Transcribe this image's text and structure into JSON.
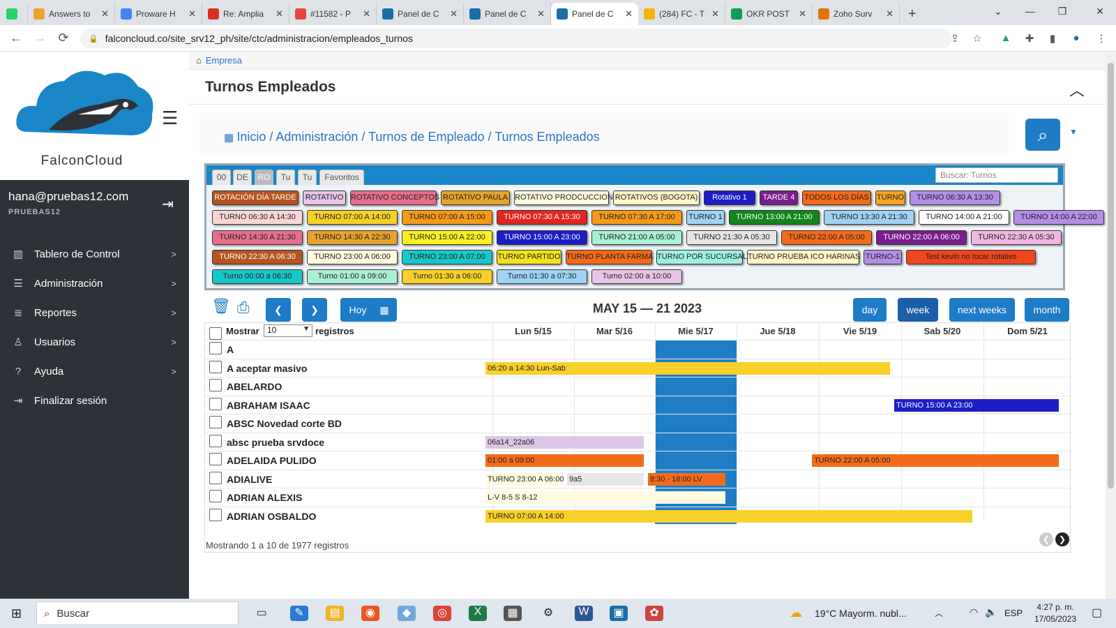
{
  "browser": {
    "tabs": [
      {
        "title": "",
        "pinned": true,
        "color": "#25d366"
      },
      {
        "title": "Answers to",
        "color": "#f0a22e"
      },
      {
        "title": "Proware H",
        "color": "#4285f4"
      },
      {
        "title": "Re: Amplia",
        "color": "#d93025"
      },
      {
        "title": "#11582 - P",
        "color": "#e8453c"
      },
      {
        "title": "Panel de C",
        "color": "#1a6ea8"
      },
      {
        "title": "Panel de C",
        "color": "#1a6ea8"
      },
      {
        "title": "Panel de C",
        "color": "#1a6ea8",
        "active": true
      },
      {
        "title": "(284) FC - T",
        "color": "#f4b400"
      },
      {
        "title": "OKR POST",
        "color": "#0f9d58"
      },
      {
        "title": "Zoho Surv",
        "color": "#e37400"
      }
    ],
    "url": "falconcloud.co/site_srv12_ph/site/ctc/administracion/empleados_turnos"
  },
  "sidebar": {
    "brand": "FalconCloud",
    "user_email": "hana@pruebas12.com",
    "company": "PRUEBAS12",
    "items": [
      {
        "label": "Tablero de Control",
        "icon": "chart-icon",
        "arrow": ">"
      },
      {
        "label": "Administración",
        "icon": "list-icon",
        "arrow": ">"
      },
      {
        "label": "Reportes",
        "icon": "report-list-icon",
        "arrow": ">"
      },
      {
        "label": "Usuarios",
        "icon": "user-icon",
        "arrow": ">"
      },
      {
        "label": "Ayuda",
        "icon": "question-icon",
        "arrow": ">"
      },
      {
        "label": "Finalizar sesión",
        "icon": "logout-icon",
        "arrow": ""
      }
    ]
  },
  "header": {
    "crumb_top": "Empresa",
    "page_title": "Turnos Empleados",
    "breadcrumb": "Inicio / Administración / Turnos de Empleado / Turnos Empleados"
  },
  "legend": {
    "tabs": [
      "00",
      "DE",
      "RO",
      "Tu",
      "Tu",
      "Favoritos"
    ],
    "active_tab": 2,
    "search_placeholder": "Buscar: Turnos",
    "chips": [
      [
        [
          "ROTACIÓN DÍA TARDE",
          "#b5561f",
          "#fff"
        ],
        [
          "ROTATIVO",
          "#e8c4e8",
          "#222"
        ],
        [
          "ROTATIVO CONCEPTOS",
          "#e76f8c",
          "#222"
        ],
        [
          "ROTATIVO PAULA",
          "#e6a32e",
          "#222"
        ],
        [
          "ROTATIVO PRODCUCCION",
          "#fffbe0",
          "#222"
        ],
        [
          "ROTATIVOS (BOGOTA)",
          "#fff5c8",
          "#222"
        ],
        [
          "Rotativo 1",
          "#1d1dc8",
          "#fff"
        ],
        [
          "TARDE 4",
          "#7b1d8c",
          "#fff"
        ],
        [
          "TODOS LOS DÍAS",
          "#f36b1a",
          "#222"
        ],
        [
          "TURNO",
          "#f5a623",
          "#222"
        ],
        [
          "TURNO 06:30 A 13:30",
          "#b48ee6",
          "#222"
        ]
      ],
      [
        [
          "TURNO 06:30 A 14:30",
          "#f8d6d6",
          "#222"
        ],
        [
          "TURNO 07:00 A 14:00",
          "#f8d02a",
          "#222"
        ],
        [
          "TURNO 07:00 A 15:00",
          "#f59a1a",
          "#222"
        ],
        [
          "TURNO 07:30 A 15:30",
          "#e0261e",
          "#fff"
        ],
        [
          "TURNO 07:30 A 17:00",
          "#f59a1a",
          "#222"
        ],
        [
          "TURNO 1",
          "#9fd3f5",
          "#222"
        ],
        [
          "TURNO 13:00 A 21:00",
          "#11861a",
          "#fff"
        ],
        [
          "TURNO 13:30 A 21:30",
          "#9fd3f5",
          "#222"
        ],
        [
          "TURNO 14:00 A 21:00",
          "#fff",
          "#222"
        ],
        [
          "TURNO 14:00 A 22:00",
          "#b48ee6",
          "#222"
        ]
      ],
      [
        [
          "TURNO 14:30 A 21:30",
          "#e76f8c",
          "#222"
        ],
        [
          "TURNO 14:30 A 22:30",
          "#e6a32e",
          "#222"
        ],
        [
          "TURNO 15:00 A 22:00",
          "#faf021",
          "#222"
        ],
        [
          "TURNO 15:00 A 23:00",
          "#1d1dc8",
          "#fff"
        ],
        [
          "TURNO 21:00 A 05:00",
          "#a8f0d4",
          "#222"
        ],
        [
          "TURNO 21:30 A 05:30",
          "#e6e6e6",
          "#222"
        ],
        [
          "TURNO 22:00 A 05:00",
          "#f36b1a",
          "#222"
        ],
        [
          "TURNO 22:00 A 06:00",
          "#7b1d8c",
          "#fff"
        ],
        [
          "TURNO 22:30 A 05:30",
          "#f2b6e4",
          "#222"
        ]
      ],
      [
        [
          "TURNO 22:30 A 06:30",
          "#b5561f",
          "#fff"
        ],
        [
          "TURNO 23:00 A 06:00",
          "#fffbe0",
          "#222"
        ],
        [
          "TURNO 23:00 A 07:00",
          "#18c8c8",
          "#222"
        ],
        [
          "TURNO PARTIDO",
          "#f5e21a",
          "#222"
        ],
        [
          "TURNO PLANTA FARMA",
          "#f36b1a",
          "#222"
        ],
        [
          "TURNO POR SUCURSAL",
          "#9ef2e0",
          "#222"
        ],
        [
          "TURNO PRUEBA ICO HARINAS",
          "#fff5c8",
          "#222"
        ],
        [
          "TURNO-1",
          "#b48ee6",
          "#222"
        ],
        [
          "Test kevin no tocar rotativo",
          "#f0461e",
          "#222"
        ]
      ],
      [
        [
          "Turno 00:00 a 06:30",
          "#18c8c8",
          "#222"
        ],
        [
          "Turno 01:00 a 09:00",
          "#a8f0d4",
          "#222"
        ],
        [
          "Turno 01:30 a 06:00",
          "#f8d02a",
          "#222"
        ],
        [
          "Turno 01:30 a 07:30",
          "#9fd3f5",
          "#222"
        ],
        [
          "Turno 02:00 a 10:00",
          "#e8c4e8",
          "#222"
        ]
      ]
    ]
  },
  "toolbar": {
    "today_label": "Hoy",
    "range_label": "MAY 15 — 21 2023",
    "views": [
      "day",
      "week",
      "next weeks",
      "month"
    ],
    "active_view": "week"
  },
  "calendar": {
    "show_label": "Mostrar",
    "show_value": "10",
    "records_label": "registros",
    "days": [
      "Lun 5/15",
      "Mar 5/16",
      "Mie 5/17",
      "Jue 5/18",
      "Vie 5/19",
      "Sab 5/20",
      "Dom 5/21"
    ],
    "today_index": 2,
    "rows": [
      {
        "name": "A",
        "events": []
      },
      {
        "name": "A aceptar masivo",
        "events": [
          {
            "label": "06:20 a 14:30 Lun-Sab",
            "start": 0,
            "end": 5,
            "color": "#f8d02a"
          }
        ]
      },
      {
        "name": "ABELARDO",
        "events": []
      },
      {
        "name": "ABRAHAM ISAAC",
        "events": [
          {
            "label": "TURNO 15:00 A 23:00",
            "start": 5,
            "end": 7,
            "color": "#1d1dc8",
            "text_color": "#fff"
          }
        ]
      },
      {
        "name": "ABSC Novedad corte BD",
        "events": []
      },
      {
        "name": "absc prueba srvdoce",
        "events": [
          {
            "label": "06a14_22a06",
            "start": 0,
            "end": 2,
            "color": "#dcc6e6"
          }
        ]
      },
      {
        "name": "ADELAIDA PULIDO",
        "events": [
          {
            "label": "01:00 a 09:00",
            "start": 0,
            "end": 2,
            "color": "#f36b1a"
          },
          {
            "label": "TURNO 22:00 A 05:00",
            "start": 4,
            "end": 7,
            "color": "#f36b1a"
          }
        ]
      },
      {
        "name": "ADIALIVE",
        "events": [
          {
            "label": "TURNO 23:00 A 06:00",
            "start": 0,
            "end": 1,
            "color": "#fffbe0"
          },
          {
            "label": "9a5",
            "start": 1,
            "end": 2,
            "color": "#e6e6e6"
          },
          {
            "label": "8:30 - 18:00 LV",
            "start": 2,
            "end": 3,
            "color": "#f36b1a"
          }
        ]
      },
      {
        "name": "ADRIAN ALEXIS",
        "events": [
          {
            "label": "L-V 8-5 S 8-12",
            "start": 0,
            "end": 3,
            "color": "#fffbe0"
          }
        ]
      },
      {
        "name": "ADRIAN OSBALDO",
        "events": [
          {
            "label": "TURNO 07:00 A 14:00",
            "start": 0,
            "end": 6,
            "color": "#f8d02a"
          }
        ]
      }
    ],
    "footer": "Mostrando 1 a 10 de 1977 registros"
  },
  "taskbar": {
    "search_label": "Buscar",
    "weather": "19°C  Mayorm. nubl...",
    "lang": "ESP",
    "time": "4:27 p. m.",
    "date": "17/05/2023"
  }
}
